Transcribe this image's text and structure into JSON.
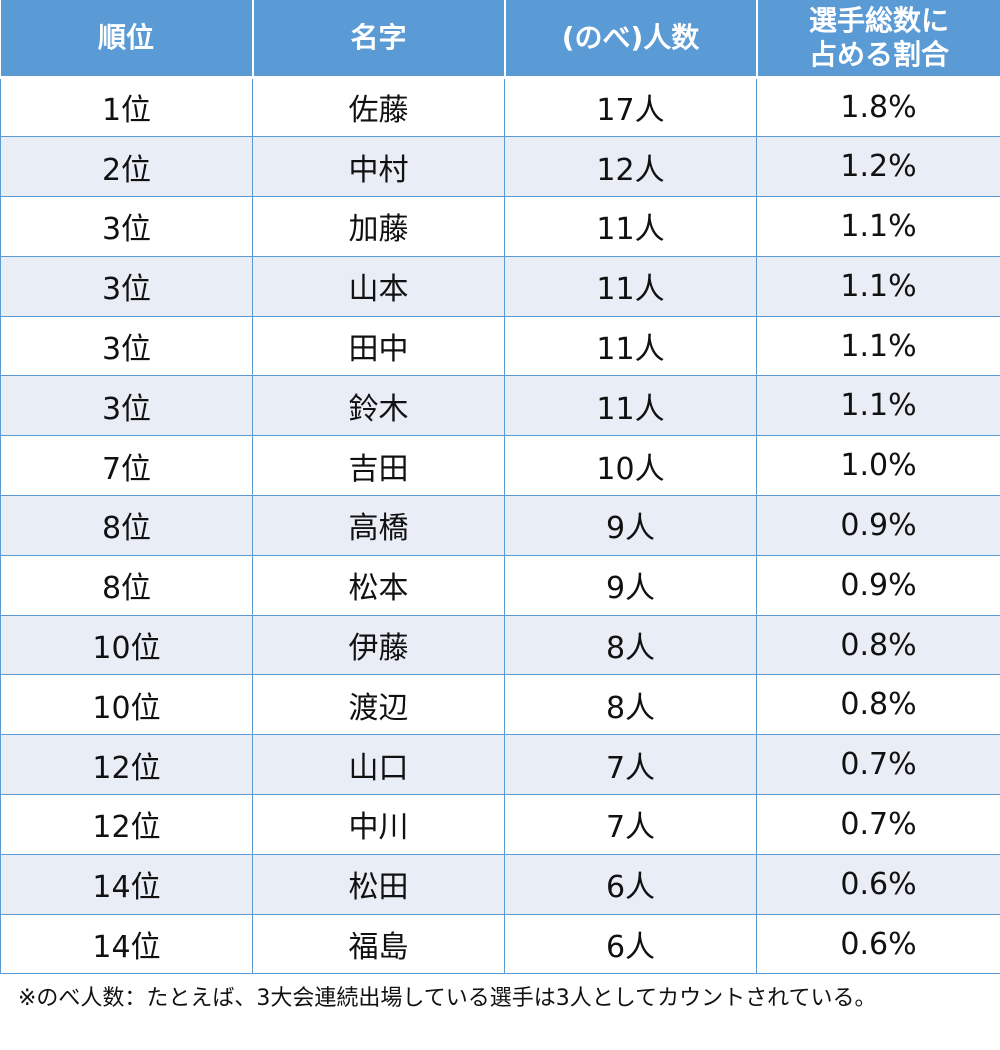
{
  "header": {
    "rank": "順位",
    "surname": "名字",
    "count": "(のべ)人数",
    "share_line1": "選手総数に",
    "share_line2": "占める割合"
  },
  "rows": [
    {
      "rank": "1位",
      "surname": "佐藤",
      "count": "17人",
      "share": "1.8%"
    },
    {
      "rank": "2位",
      "surname": "中村",
      "count": "12人",
      "share": "1.2%"
    },
    {
      "rank": "3位",
      "surname": "加藤",
      "count": "11人",
      "share": "1.1%"
    },
    {
      "rank": "3位",
      "surname": "山本",
      "count": "11人",
      "share": "1.1%"
    },
    {
      "rank": "3位",
      "surname": "田中",
      "count": "11人",
      "share": "1.1%"
    },
    {
      "rank": "3位",
      "surname": "鈴木",
      "count": "11人",
      "share": "1.1%"
    },
    {
      "rank": "7位",
      "surname": "吉田",
      "count": "10人",
      "share": "1.0%"
    },
    {
      "rank": "8位",
      "surname": "高橋",
      "count": "9人",
      "share": "0.9%"
    },
    {
      "rank": "8位",
      "surname": "松本",
      "count": "9人",
      "share": "0.9%"
    },
    {
      "rank": "10位",
      "surname": "伊藤",
      "count": "8人",
      "share": "0.8%"
    },
    {
      "rank": "10位",
      "surname": "渡辺",
      "count": "8人",
      "share": "0.8%"
    },
    {
      "rank": "12位",
      "surname": "山口",
      "count": "7人",
      "share": "0.7%"
    },
    {
      "rank": "12位",
      "surname": "中川",
      "count": "7人",
      "share": "0.7%"
    },
    {
      "rank": "14位",
      "surname": "松田",
      "count": "6人",
      "share": "0.6%"
    },
    {
      "rank": "14位",
      "surname": "福島",
      "count": "6人",
      "share": "0.6%"
    }
  ],
  "footnote": "※のべ人数：たとえば、3大会連続出場している選手は3人としてカウントされている。",
  "colors": {
    "header_bg": "#5b9bd5",
    "band_bg": "#e9edf6",
    "border": "#5b9bd5"
  }
}
